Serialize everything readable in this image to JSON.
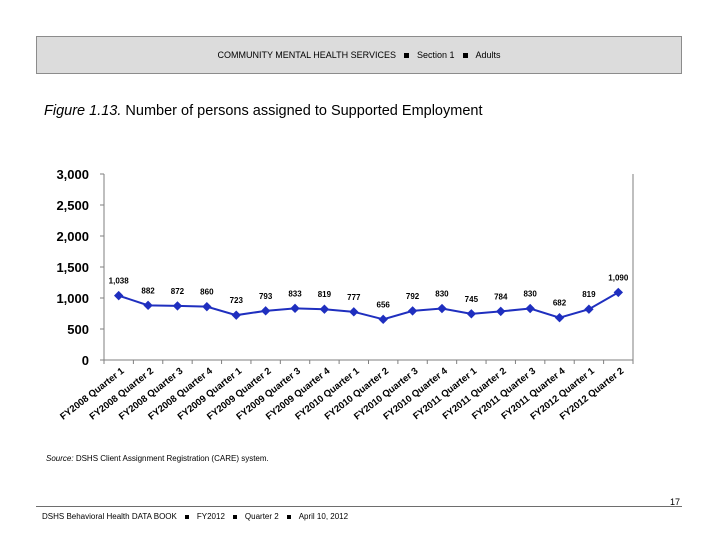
{
  "header": {
    "title": "COMMUNITY MENTAL HEALTH SERVICES",
    "section": "Section 1",
    "population": "Adults"
  },
  "figure": {
    "number": "Figure 1.13.",
    "caption": "Number of persons assigned to Supported Employment"
  },
  "chart_data": {
    "type": "line",
    "title": "",
    "xlabel": "",
    "ylabel": "",
    "ylim": [
      0,
      3000
    ],
    "yticks": [
      "0",
      "500",
      "1,000",
      "1,500",
      "2,000",
      "2,500",
      "3,000"
    ],
    "grid": false,
    "legend": "none",
    "color": "#1f2fbf",
    "categories": [
      "FY2008 Quarter 1",
      "FY2008 Quarter 2",
      "FY2008 Quarter 3",
      "FY2008 Quarter 4",
      "FY2009 Quarter 1",
      "FY2009 Quarter 2",
      "FY2009 Quarter 3",
      "FY2009 Quarter 4",
      "FY2010 Quarter 1",
      "FY2010 Quarter 2",
      "FY2010 Quarter 3",
      "FY2010 Quarter 4",
      "FY2011 Quarter 1",
      "FY2011 Quarter 2",
      "FY2011 Quarter 3",
      "FY2011 Quarter 4",
      "FY2012 Quarter 1",
      "FY2012 Quarter 2"
    ],
    "values": [
      1038,
      882,
      872,
      860,
      723,
      793,
      833,
      819,
      777,
      656,
      792,
      830,
      745,
      784,
      830,
      682,
      819,
      1090
    ],
    "labels": [
      "1,038",
      "882",
      "872",
      "860",
      "723",
      "793",
      "833",
      "819",
      "777",
      "656",
      "792",
      "830",
      "745",
      "784",
      "830",
      "682",
      "819",
      "1,090"
    ]
  },
  "source": {
    "prefix": "Source:",
    "text": "DSHS Client Assignment Registration (CARE) system."
  },
  "page_number": "17",
  "footer": {
    "book": "DSHS Behavioral Health DATA BOOK",
    "year": "FY2012",
    "quarter": "Quarter 2",
    "date": "April 10, 2012"
  }
}
